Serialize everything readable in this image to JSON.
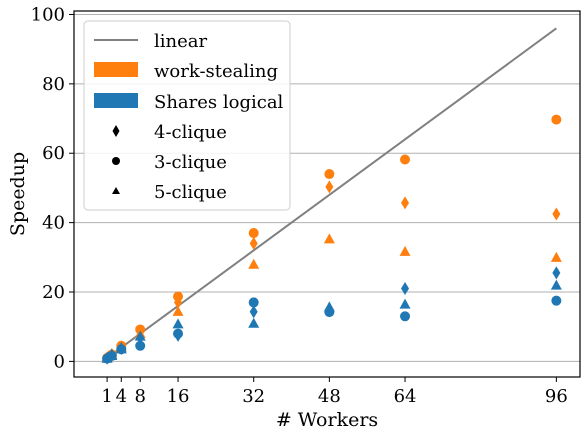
{
  "chart_data": {
    "type": "scatter",
    "title": "",
    "xlabel": "# Workers",
    "ylabel": "Speedup",
    "xlim": [
      -6,
      101
    ],
    "ylim": [
      -4.5,
      101
    ],
    "xticks": [
      1,
      4,
      8,
      16,
      32,
      48,
      64,
      96
    ],
    "yticks": [
      0,
      20,
      40,
      60,
      80,
      100
    ],
    "grid": "horizontal",
    "legend_position": "top-left",
    "reference_line": {
      "label": "linear",
      "x": [
        0,
        96
      ],
      "y": [
        0,
        96
      ],
      "color": "#808080"
    },
    "methods": [
      {
        "label": "work-stealing",
        "color": "#ff7f0e"
      },
      {
        "label": "Shares logical",
        "color": "#1f77b4"
      }
    ],
    "patterns": [
      {
        "label": "4-clique",
        "marker": "diamond"
      },
      {
        "label": "3-clique",
        "marker": "circle"
      },
      {
        "label": "5-clique",
        "marker": "triangle"
      }
    ],
    "x": [
      1,
      2,
      4,
      8,
      16,
      32,
      48,
      64,
      96
    ],
    "series": [
      {
        "method": "work-stealing",
        "pattern": "3-clique",
        "values": [
          1.0,
          2.0,
          4.5,
          9.2,
          18.7,
          37.0,
          54.0,
          58.2,
          69.7
        ]
      },
      {
        "method": "work-stealing",
        "pattern": "4-clique",
        "values": [
          1.0,
          2.0,
          4.2,
          8.5,
          17.0,
          34.0,
          50.3,
          45.7,
          42.5
        ]
      },
      {
        "method": "work-stealing",
        "pattern": "5-clique",
        "values": [
          1.0,
          2.0,
          4.0,
          8.0,
          14.4,
          28.0,
          35.3,
          31.7,
          30.0
        ]
      },
      {
        "method": "Shares logical",
        "pattern": "3-clique",
        "values": [
          0.8,
          1.6,
          3.5,
          4.5,
          8.0,
          17.0,
          14.2,
          13.0,
          17.5
        ]
      },
      {
        "method": "Shares logical",
        "pattern": "4-clique",
        "values": [
          0.9,
          1.8,
          3.7,
          6.8,
          7.5,
          14.3,
          14.7,
          21.0,
          25.5
        ]
      },
      {
        "method": "Shares logical",
        "pattern": "5-clique",
        "values": [
          0.9,
          1.7,
          3.6,
          7.3,
          10.8,
          11.0,
          15.7,
          16.5,
          22.0
        ]
      }
    ]
  }
}
